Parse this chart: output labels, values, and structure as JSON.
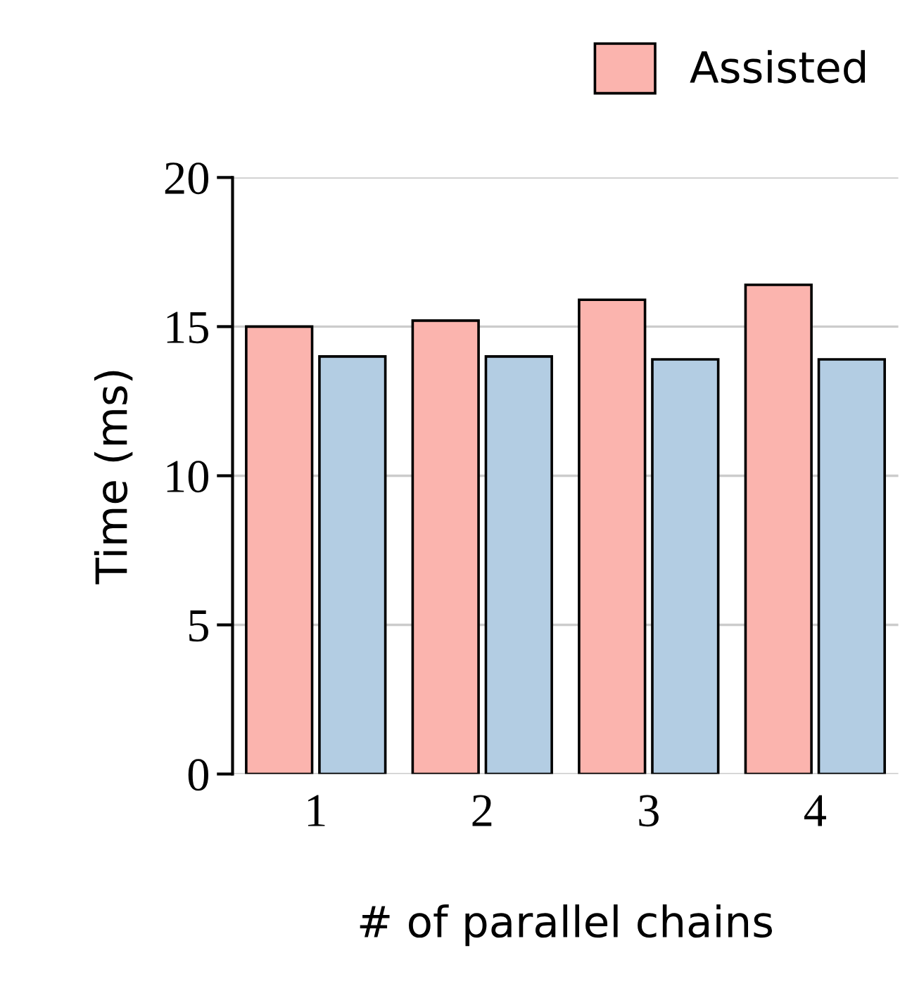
{
  "chart_data": {
    "type": "bar",
    "xlabel": "# of parallel chains",
    "ylabel": "Time (ms)",
    "categories": [
      "1",
      "2",
      "3",
      "4"
    ],
    "series": [
      {
        "name": "Assisted",
        "color": "#fbb4ae",
        "values": [
          15.0,
          15.2,
          15.9,
          16.4
        ]
      },
      {
        "color": "#b3cde3",
        "values": [
          14.0,
          14.0,
          13.9,
          13.9
        ]
      }
    ],
    "ylim": [
      0,
      20
    ],
    "yticks": [
      0,
      5,
      10,
      15,
      20
    ],
    "grid": "y",
    "legend": "top right"
  }
}
